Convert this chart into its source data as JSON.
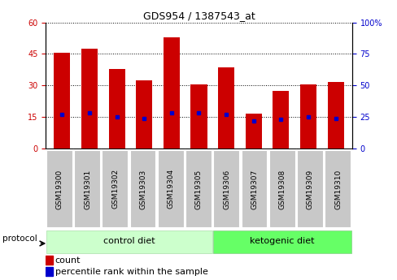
{
  "title": "GDS954 / 1387543_at",
  "samples": [
    "GSM19300",
    "GSM19301",
    "GSM19302",
    "GSM19303",
    "GSM19304",
    "GSM19305",
    "GSM19306",
    "GSM19307",
    "GSM19308",
    "GSM19309",
    "GSM19310"
  ],
  "counts": [
    45.5,
    47.5,
    38.0,
    32.5,
    53.0,
    30.5,
    38.5,
    16.5,
    27.5,
    30.5,
    31.5
  ],
  "percentile_ranks": [
    27,
    28,
    25,
    24,
    28,
    28,
    27,
    22,
    23,
    25,
    24
  ],
  "group_colors": [
    "#ccffcc",
    "#66ff66"
  ],
  "bar_color": "#cc0000",
  "percentile_color": "#0000cc",
  "left_axis_color": "#cc0000",
  "right_axis_color": "#0000cc",
  "left_ylim": [
    0,
    60
  ],
  "right_ylim": [
    0,
    100
  ],
  "left_yticks": [
    0,
    15,
    30,
    45,
    60
  ],
  "right_yticks": [
    0,
    25,
    50,
    75,
    100
  ],
  "right_yticklabels": [
    "0",
    "25",
    "50",
    "75",
    "100%"
  ],
  "tick_bg_color": "#c8c8c8",
  "plot_bg_color": "#ffffff",
  "bar_width": 0.6,
  "n_control": 6,
  "n_keto": 5
}
